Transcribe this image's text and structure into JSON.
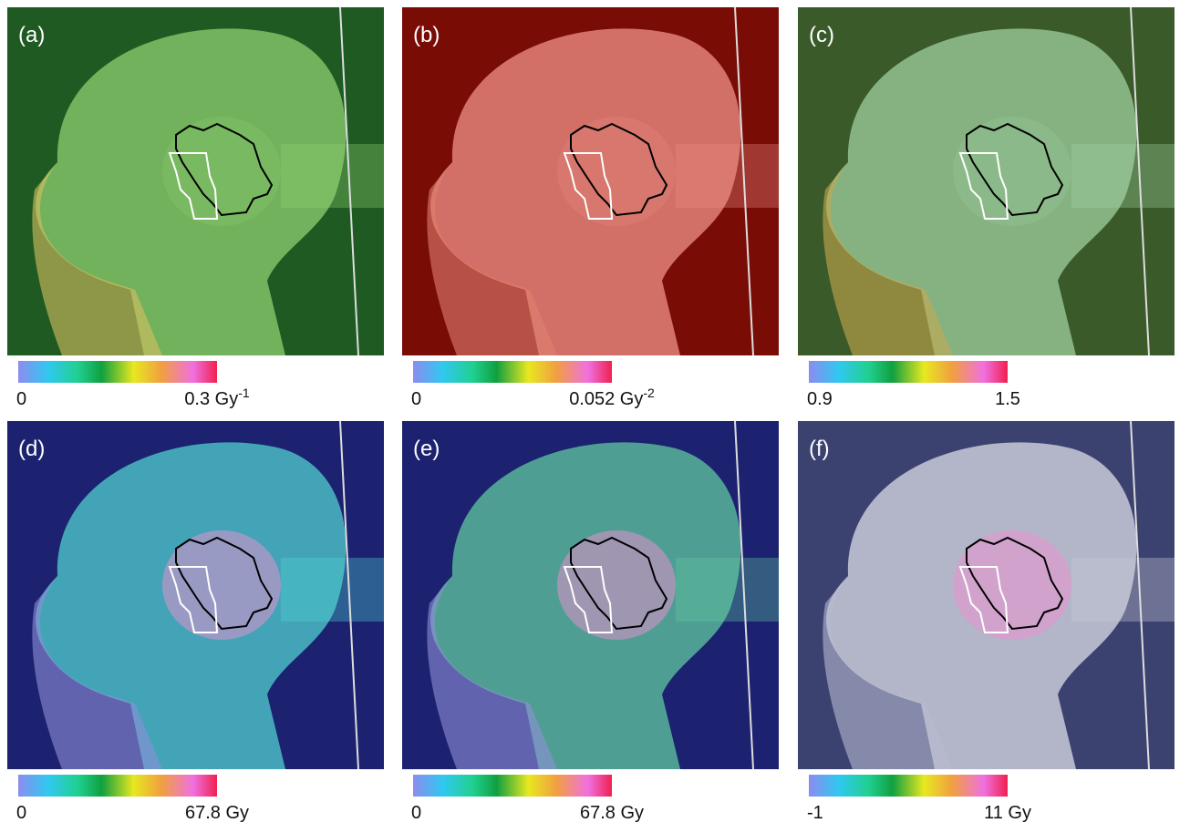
{
  "panels": [
    {
      "label": "(a)",
      "cbar_min": "0",
      "cbar_max": "0.3 Gy",
      "cbar_max_sup": "-1"
    },
    {
      "label": "(b)",
      "cbar_min": "0",
      "cbar_max": "0.052 Gy",
      "cbar_max_sup": "-2"
    },
    {
      "label": "(c)",
      "cbar_min": "0.9",
      "cbar_max": "1.5"
    },
    {
      "label": "(d)",
      "cbar_min": "0",
      "cbar_max": "67.8 Gy"
    },
    {
      "label": "(e)",
      "cbar_min": "0",
      "cbar_max": "67.8 Gy"
    },
    {
      "label": "(f)",
      "cbar_min": "-1",
      "cbar_max": "11 Gy"
    }
  ]
}
